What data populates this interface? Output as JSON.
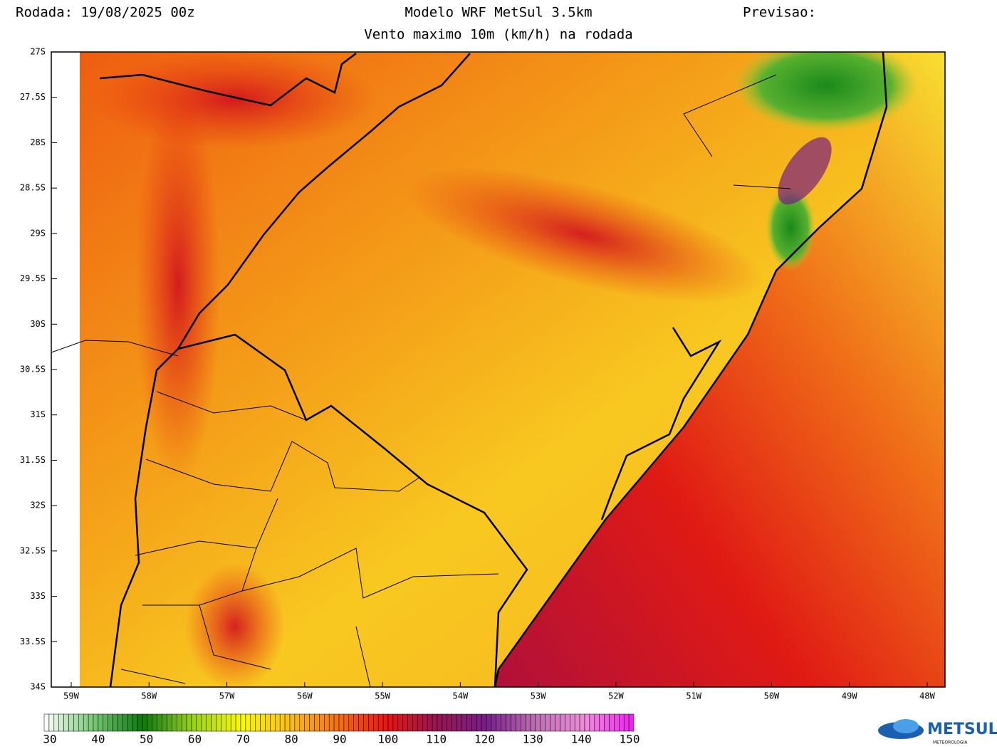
{
  "header": {
    "run": "Rodada: 19/08/2025 00z",
    "model": "Modelo WRF MetSul 3.5km",
    "forecast": "Previsao:",
    "subtitle": "Vento maximo 10m (km/h) na rodada"
  },
  "map": {
    "lat_labels": [
      "27S",
      "27.5S",
      "28S",
      "28.5S",
      "29S",
      "29.5S",
      "30S",
      "30.5S",
      "31S",
      "31.5S",
      "32S",
      "32.5S",
      "33S",
      "33.5S",
      "34S"
    ],
    "lon_labels": [
      "59W",
      "58W",
      "57W",
      "56W",
      "55W",
      "54W",
      "53W",
      "52W",
      "51W",
      "50W",
      "49W",
      "48W"
    ]
  },
  "colorbar": {
    "labels": [
      30,
      40,
      50,
      60,
      70,
      80,
      90,
      100,
      110,
      120,
      130,
      140,
      150
    ]
  },
  "logo": {
    "name": "METSUL",
    "tagline": "METEOROLOGIA"
  }
}
